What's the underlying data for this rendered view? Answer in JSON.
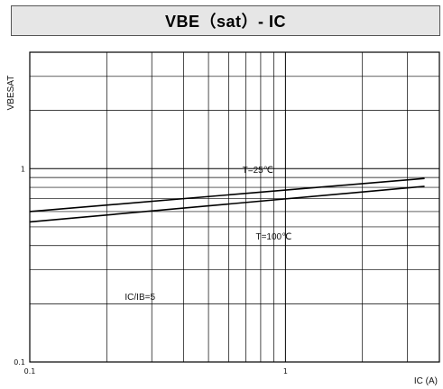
{
  "title": "VBE（sat）- IC",
  "chart_data": {
    "type": "line",
    "title": "VBE（sat）- IC",
    "xlabel": "IC (A)",
    "ylabel": "VBESAT",
    "xscale": "log",
    "yscale": "log",
    "xlim": [
      0.1,
      4
    ],
    "ylim": [
      0.1,
      4
    ],
    "grid": true,
    "x_ticks": [
      "0.1",
      "1"
    ],
    "y_ticks": [
      "0.1",
      "1"
    ],
    "series": [
      {
        "name": "T=25℃",
        "x": [
          0.1,
          3.5
        ],
        "y": [
          0.6,
          0.89
        ]
      },
      {
        "name": "T=100℃",
        "x": [
          0.1,
          3.5
        ],
        "y": [
          0.53,
          0.81
        ]
      }
    ],
    "annotations": [
      "T=25℃",
      "T=100℃",
      "IC/IB=5"
    ]
  }
}
